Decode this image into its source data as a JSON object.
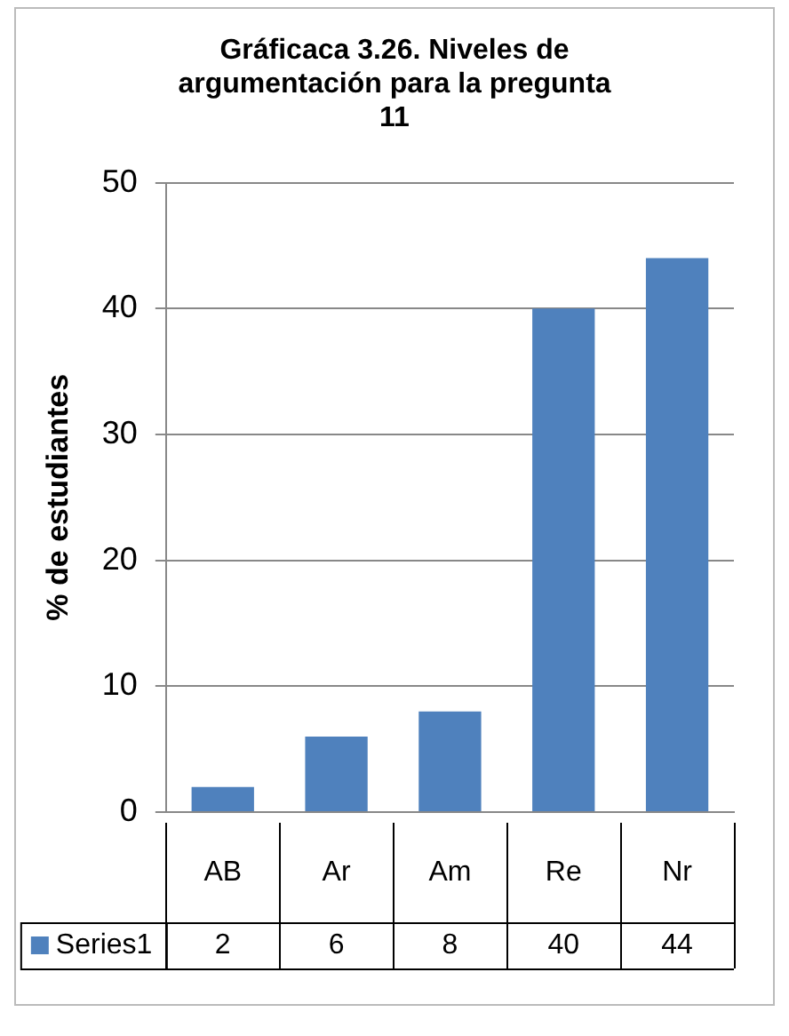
{
  "chart_data": {
    "type": "bar",
    "title": "Gráficaca 3.26. Niveles de argumentación para la pregunta 11",
    "ylabel": "% de estudiantes",
    "categories": [
      "AB",
      "Ar",
      "Am",
      "Re",
      "Nr"
    ],
    "series": [
      {
        "name": "Series1",
        "color": "#4f81bd",
        "values": [
          2,
          6,
          8,
          40,
          44
        ]
      }
    ],
    "ylim": [
      0,
      50
    ],
    "yticks": [
      0,
      10,
      20,
      30,
      40,
      50
    ],
    "grid": "y",
    "data_labels": true
  }
}
